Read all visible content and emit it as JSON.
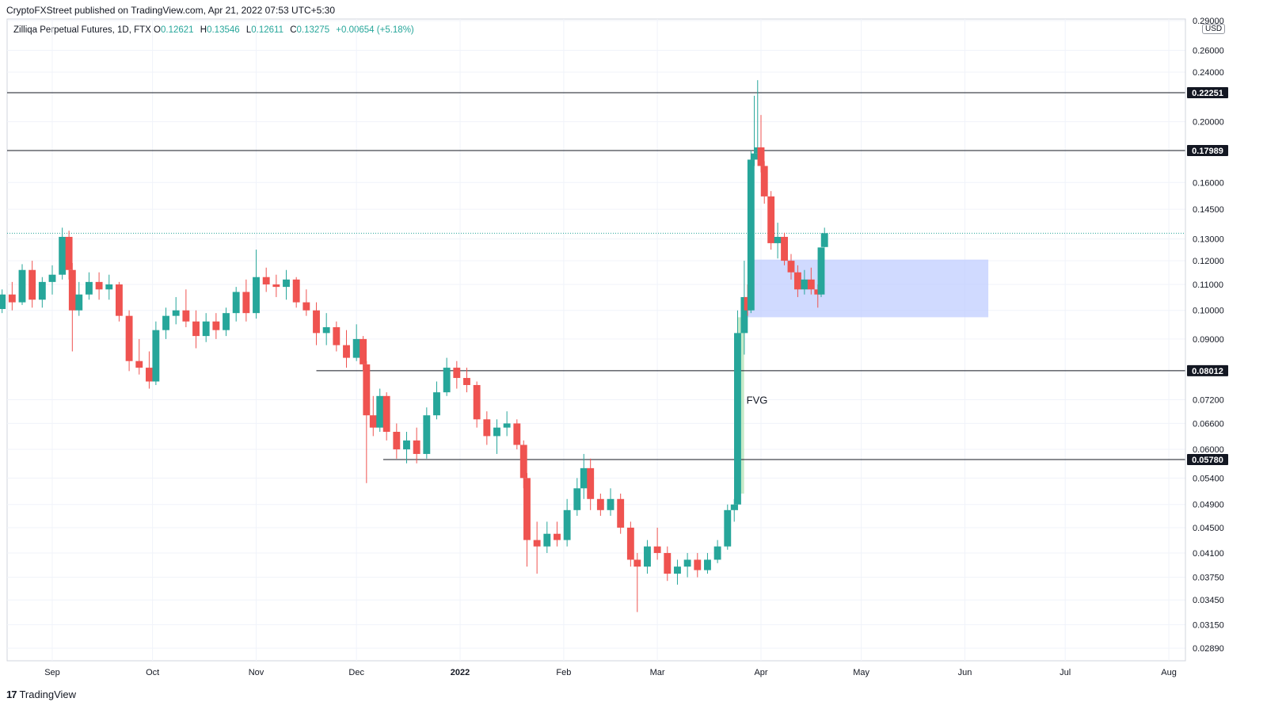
{
  "header": {
    "publish_line": "CryptoFXStreet published on TradingView.com, Apr 21, 2022 07:53 UTC+5:30"
  },
  "symbol": {
    "name": "Zilliqa Perpetual Futures, 1D, FTX",
    "o_label": "O",
    "o_value": "0.12621",
    "h_label": "H",
    "h_value": "0.13546",
    "l_label": "L",
    "l_value": "0.12611",
    "c_label": "C",
    "c_value": "0.13275",
    "change": "+0.00654 (+5.18%)"
  },
  "currency_label": "USD",
  "footer": {
    "logo": "17",
    "brand": "TradingView"
  },
  "colors": {
    "up": "#26a69a",
    "down": "#ef5350",
    "zone_fill": "#bccaff",
    "fvg_fill": "#b7e4b9",
    "level_line": "#131722",
    "grid": "#f0f3fa"
  },
  "chart_data": {
    "type": "candlestick",
    "title": "",
    "y_scale": "log",
    "ylim": [
      0.0278,
      0.29
    ],
    "y_ticks": [
      "0.29000",
      "0.26000",
      "0.24000",
      "0.22251",
      "0.20000",
      "0.17989",
      "0.16000",
      "0.14500",
      "0.13000",
      "0.12000",
      "0.11000",
      "0.10000",
      "0.09000",
      "0.08012",
      "0.07200",
      "0.06600",
      "0.06000",
      "0.05780",
      "0.05400",
      "0.04900",
      "0.04500",
      "0.04100",
      "0.03750",
      "0.03450",
      "0.03150",
      "0.02890"
    ],
    "x_ticks": [
      {
        "label": "Sep",
        "date": "2021-09-01"
      },
      {
        "label": "Oct",
        "date": "2021-10-01"
      },
      {
        "label": "Nov",
        "date": "2021-11-01"
      },
      {
        "label": "Dec",
        "date": "2021-12-01"
      },
      {
        "label": "2022",
        "date": "2022-01-01"
      },
      {
        "label": "Feb",
        "date": "2022-02-01"
      },
      {
        "label": "Mar",
        "date": "2022-03-01"
      },
      {
        "label": "Apr",
        "date": "2022-04-01"
      },
      {
        "label": "May",
        "date": "2022-05-01"
      },
      {
        "label": "Jun",
        "date": "2022-06-01"
      },
      {
        "label": "Jul",
        "date": "2022-07-01"
      },
      {
        "label": "Aug",
        "date": "2022-08-01"
      }
    ],
    "price_levels": [
      {
        "value": 0.22251,
        "label": "0.22251",
        "from": "2021-08-14"
      },
      {
        "value": 0.17989,
        "label": "0.17989",
        "from": "2021-08-14"
      },
      {
        "value": 0.08012,
        "label": "0.08012",
        "from": "2021-11-19"
      },
      {
        "value": 0.0578,
        "label": "0.05780",
        "from": "2021-12-09"
      }
    ],
    "last_price": 0.13275,
    "zones": [
      {
        "name": "demand-zone",
        "from": "2022-03-28",
        "to": "2022-06-08",
        "top": 0.1205,
        "bottom": 0.0975
      }
    ],
    "fvg": {
      "label": "FVG",
      "from": "2022-03-25",
      "to": "2022-03-26",
      "top": 0.0975,
      "bottom": 0.051
    },
    "series": [
      {
        "values": [
          [
            "2021-08-14",
            0.0965,
            0.1015,
            0.096,
            0.1
          ],
          [
            "2021-08-17",
            0.1005,
            0.108,
            0.099,
            0.106
          ],
          [
            "2021-08-20",
            0.106,
            0.111,
            0.1,
            0.103
          ],
          [
            "2021-08-23",
            0.103,
            0.1185,
            0.102,
            0.116
          ],
          [
            "2021-08-26",
            0.116,
            0.12,
            0.101,
            0.104
          ],
          [
            "2021-08-29",
            0.104,
            0.113,
            0.101,
            0.111
          ],
          [
            "2021-09-01",
            0.111,
            0.118,
            0.106,
            0.114
          ],
          [
            "2021-09-04",
            0.114,
            0.1355,
            0.112,
            0.131
          ],
          [
            "2021-09-06",
            0.131,
            0.134,
            0.112,
            0.116
          ],
          [
            "2021-09-07",
            0.116,
            0.119,
            0.086,
            0.1
          ],
          [
            "2021-09-09",
            0.1,
            0.111,
            0.098,
            0.106
          ],
          [
            "2021-09-12",
            0.106,
            0.115,
            0.104,
            0.111
          ],
          [
            "2021-09-15",
            0.111,
            0.115,
            0.104,
            0.108
          ],
          [
            "2021-09-18",
            0.108,
            0.114,
            0.104,
            0.11
          ],
          [
            "2021-09-21",
            0.11,
            0.111,
            0.096,
            0.098
          ],
          [
            "2021-09-24",
            0.098,
            0.1,
            0.08,
            0.083
          ],
          [
            "2021-09-27",
            0.083,
            0.09,
            0.079,
            0.081
          ],
          [
            "2021-09-30",
            0.081,
            0.086,
            0.075,
            0.077
          ],
          [
            "2021-10-02",
            0.077,
            0.096,
            0.076,
            0.093
          ],
          [
            "2021-10-05",
            0.093,
            0.101,
            0.09,
            0.098
          ],
          [
            "2021-10-08",
            0.098,
            0.105,
            0.095,
            0.1
          ],
          [
            "2021-10-11",
            0.1,
            0.108,
            0.094,
            0.096
          ],
          [
            "2021-10-14",
            0.096,
            0.1,
            0.087,
            0.091
          ],
          [
            "2021-10-17",
            0.091,
            0.099,
            0.089,
            0.096
          ],
          [
            "2021-10-20",
            0.096,
            0.099,
            0.09,
            0.093
          ],
          [
            "2021-10-23",
            0.093,
            0.101,
            0.091,
            0.099
          ],
          [
            "2021-10-26",
            0.099,
            0.109,
            0.096,
            0.107
          ],
          [
            "2021-10-29",
            0.107,
            0.112,
            0.096,
            0.099
          ],
          [
            "2021-11-01",
            0.099,
            0.125,
            0.097,
            0.113
          ],
          [
            "2021-11-04",
            0.113,
            0.117,
            0.107,
            0.11
          ],
          [
            "2021-11-07",
            0.11,
            0.114,
            0.105,
            0.109
          ],
          [
            "2021-11-10",
            0.109,
            0.116,
            0.104,
            0.112
          ],
          [
            "2021-11-13",
            0.112,
            0.113,
            0.101,
            0.103
          ],
          [
            "2021-11-16",
            0.103,
            0.108,
            0.098,
            0.1
          ],
          [
            "2021-11-19",
            0.1,
            0.103,
            0.088,
            0.092
          ],
          [
            "2021-11-22",
            0.092,
            0.099,
            0.088,
            0.094
          ],
          [
            "2021-11-25",
            0.094,
            0.096,
            0.086,
            0.088
          ],
          [
            "2021-11-28",
            0.088,
            0.093,
            0.081,
            0.084
          ],
          [
            "2021-12-01",
            0.084,
            0.095,
            0.083,
            0.09
          ],
          [
            "2021-12-03",
            0.09,
            0.091,
            0.08,
            0.082
          ],
          [
            "2021-12-04",
            0.082,
            0.083,
            0.053,
            0.068
          ],
          [
            "2021-12-06",
            0.068,
            0.073,
            0.063,
            0.065
          ],
          [
            "2021-12-08",
            0.065,
            0.075,
            0.064,
            0.073
          ],
          [
            "2021-12-10",
            0.073,
            0.074,
            0.062,
            0.064
          ],
          [
            "2021-12-13",
            0.064,
            0.066,
            0.058,
            0.06
          ],
          [
            "2021-12-16",
            0.06,
            0.064,
            0.057,
            0.062
          ],
          [
            "2021-12-19",
            0.062,
            0.065,
            0.057,
            0.059
          ],
          [
            "2021-12-22",
            0.059,
            0.07,
            0.058,
            0.068
          ],
          [
            "2021-12-25",
            0.068,
            0.077,
            0.067,
            0.074
          ],
          [
            "2021-12-28",
            0.074,
            0.084,
            0.073,
            0.081
          ],
          [
            "2021-12-31",
            0.081,
            0.083,
            0.075,
            0.078
          ],
          [
            "2022-01-03",
            0.078,
            0.081,
            0.074,
            0.076
          ],
          [
            "2022-01-06",
            0.076,
            0.077,
            0.065,
            0.067
          ],
          [
            "2022-01-09",
            0.067,
            0.069,
            0.061,
            0.063
          ],
          [
            "2022-01-12",
            0.063,
            0.067,
            0.059,
            0.065
          ],
          [
            "2022-01-15",
            0.065,
            0.069,
            0.063,
            0.066
          ],
          [
            "2022-01-18",
            0.066,
            0.067,
            0.06,
            0.061
          ],
          [
            "2022-01-20",
            0.061,
            0.062,
            0.052,
            0.054
          ],
          [
            "2022-01-21",
            0.054,
            0.055,
            0.039,
            0.043
          ],
          [
            "2022-01-24",
            0.043,
            0.046,
            0.038,
            0.042
          ],
          [
            "2022-01-27",
            0.042,
            0.046,
            0.041,
            0.044
          ],
          [
            "2022-01-30",
            0.044,
            0.046,
            0.042,
            0.043
          ],
          [
            "2022-02-02",
            0.043,
            0.05,
            0.042,
            0.048
          ],
          [
            "2022-02-05",
            0.048,
            0.054,
            0.047,
            0.052
          ],
          [
            "2022-02-07",
            0.052,
            0.059,
            0.05,
            0.056
          ],
          [
            "2022-02-09",
            0.056,
            0.058,
            0.048,
            0.05
          ],
          [
            "2022-02-12",
            0.05,
            0.051,
            0.047,
            0.048
          ],
          [
            "2022-02-15",
            0.048,
            0.052,
            0.047,
            0.05
          ],
          [
            "2022-02-18",
            0.05,
            0.051,
            0.044,
            0.045
          ],
          [
            "2022-02-21",
            0.045,
            0.046,
            0.039,
            0.04
          ],
          [
            "2022-02-23",
            0.04,
            0.041,
            0.033,
            0.039
          ],
          [
            "2022-02-26",
            0.039,
            0.043,
            0.038,
            0.042
          ],
          [
            "2022-03-01",
            0.042,
            0.045,
            0.04,
            0.041
          ],
          [
            "2022-03-04",
            0.041,
            0.042,
            0.037,
            0.038
          ],
          [
            "2022-03-07",
            0.038,
            0.04,
            0.0365,
            0.039
          ],
          [
            "2022-03-10",
            0.039,
            0.041,
            0.0375,
            0.04
          ],
          [
            "2022-03-13",
            0.04,
            0.041,
            0.0375,
            0.0385
          ],
          [
            "2022-03-16",
            0.0385,
            0.041,
            0.038,
            0.04
          ],
          [
            "2022-03-19",
            0.04,
            0.043,
            0.0395,
            0.042
          ],
          [
            "2022-03-22",
            0.042,
            0.049,
            0.0415,
            0.048
          ],
          [
            "2022-03-24",
            0.048,
            0.05,
            0.046,
            0.049
          ],
          [
            "2022-03-25",
            0.049,
            0.1,
            0.048,
            0.092
          ],
          [
            "2022-03-27",
            0.092,
            0.12,
            0.085,
            0.105
          ],
          [
            "2022-03-28",
            0.105,
            0.11,
            0.098,
            0.1
          ],
          [
            "2022-03-29",
            0.1,
            0.18,
            0.099,
            0.174
          ],
          [
            "2022-03-30",
            0.174,
            0.22,
            0.17,
            0.178
          ],
          [
            "2022-03-31",
            0.178,
            0.233,
            0.176,
            0.182
          ],
          [
            "2022-04-01",
            0.182,
            0.205,
            0.166,
            0.17
          ],
          [
            "2022-04-02",
            0.17,
            0.173,
            0.148,
            0.152
          ],
          [
            "2022-04-04",
            0.152,
            0.155,
            0.125,
            0.128
          ],
          [
            "2022-04-06",
            0.128,
            0.138,
            0.121,
            0.131
          ],
          [
            "2022-04-08",
            0.131,
            0.133,
            0.118,
            0.12
          ],
          [
            "2022-04-10",
            0.12,
            0.123,
            0.112,
            0.115
          ],
          [
            "2022-04-12",
            0.115,
            0.118,
            0.105,
            0.108
          ],
          [
            "2022-04-14",
            0.108,
            0.116,
            0.106,
            0.112
          ],
          [
            "2022-04-16",
            0.112,
            0.117,
            0.106,
            0.108
          ],
          [
            "2022-04-18",
            0.108,
            0.11,
            0.101,
            0.106
          ],
          [
            "2022-04-19",
            0.106,
            0.121,
            0.105,
            0.126
          ],
          [
            "2022-04-20",
            0.1262,
            0.1355,
            0.1261,
            0.1328
          ]
        ]
      }
    ]
  }
}
